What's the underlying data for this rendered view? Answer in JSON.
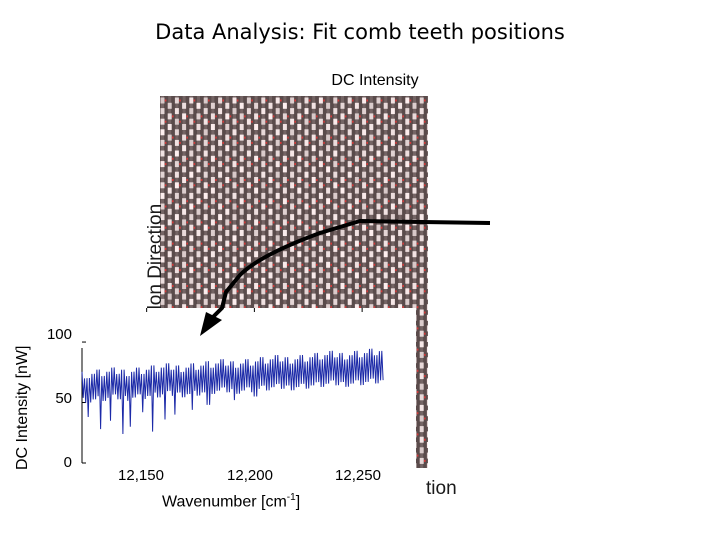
{
  "slide_title": "Data Analysis: Fit comb teeth positions",
  "main_panel": {
    "title": "DC Intensity",
    "axis_fragment_left": "alon Direction",
    "axis_fragment_bottom": "tion"
  },
  "chart_data": {
    "type": "line",
    "title": "",
    "xlabel": "Wavenumber [cm",
    "xlabel_superscript": "-1",
    "xlabel_suffix": "]",
    "ylabel": "DC Intensity [nW]",
    "xlim": [
      12120,
      12275
    ],
    "ylim": [
      0,
      105
    ],
    "xticks": [
      12150,
      12200,
      12250
    ],
    "xtick_labels": [
      "12,150",
      "12,200",
      "12,250"
    ],
    "yticks": [
      0,
      50,
      100
    ],
    "ytick_labels": [
      "0",
      "50",
      "100"
    ],
    "series": [
      {
        "color": "#1c2aa8",
        "x_start": 12120,
        "x_end": 12260,
        "comb_spacing": 1.15,
        "peak_start": 73,
        "peak_end": 92,
        "dip_start": 52,
        "dip_end": 68,
        "deep_dips": [
          [
            12122,
            38
          ],
          [
            12128,
            28
          ],
          [
            12133,
            35
          ],
          [
            12138,
            24
          ],
          [
            12142,
            30
          ],
          [
            12148,
            42
          ],
          [
            12152,
            26
          ],
          [
            12158,
            36
          ],
          [
            12163,
            40
          ],
          [
            12171,
            44
          ],
          [
            12178,
            48
          ],
          [
            12190,
            52
          ],
          [
            12200,
            55
          ]
        ]
      }
    ],
    "grid": false
  },
  "colors": {
    "heatmap_dark": "#5a4b4b",
    "heatmap_light": "#f1e2e2",
    "fit_marker": "#d43a3a",
    "arrow": "#000000",
    "series": "#1c2aa8"
  }
}
